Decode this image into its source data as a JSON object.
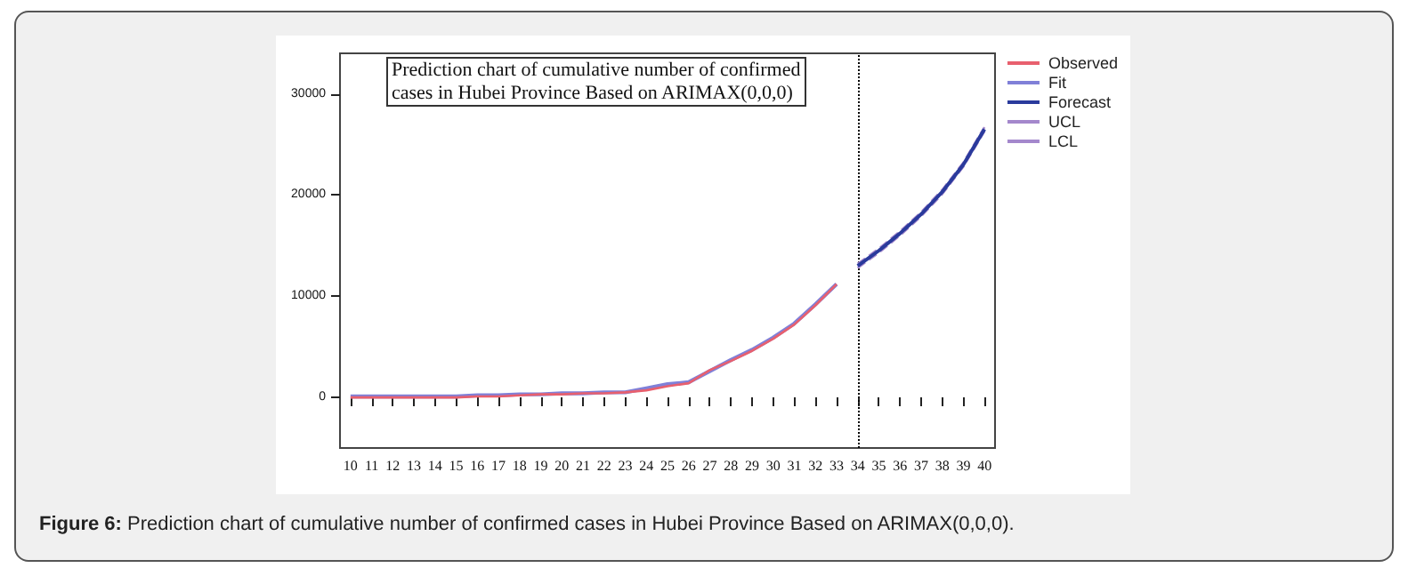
{
  "chart_data": {
    "type": "line",
    "title": "Prediction chart of cumulative number of confirmed\ncases in Hubei Province Based on ARIMAX(0,0,0)",
    "annotations": [
      "Figure 6: Prediction chart of cumulative number of confirmed cases in Hubei Province Based on ARIMAX(0,0,0)."
    ],
    "categories": [
      "10",
      "11",
      "12",
      "13",
      "14",
      "15",
      "16",
      "17",
      "18",
      "19",
      "20",
      "21",
      "22",
      "23",
      "24",
      "25",
      "26",
      "27",
      "28",
      "29",
      "30",
      "31",
      "32",
      "33",
      "34",
      "35",
      "36",
      "37",
      "38",
      "39",
      "40"
    ],
    "series": [
      {
        "name": "Observed",
        "color": "#e8606e",
        "line_style": "solid",
        "values": [
          0,
          0,
          0,
          0,
          0,
          0,
          100,
          100,
          200,
          300,
          300,
          400,
          400,
          500,
          700,
          1100,
          1400,
          2700,
          3600,
          4600,
          5800,
          7200,
          9100,
          11200,
          null,
          null,
          null,
          null,
          null,
          null,
          null
        ]
      },
      {
        "name": "Fit",
        "color": "#8080d8",
        "line_style": "solid",
        "values": [
          100,
          100,
          100,
          100,
          100,
          100,
          200,
          200,
          300,
          300,
          400,
          400,
          500,
          500,
          900,
          1300,
          1500,
          2600,
          3700,
          4700,
          5900,
          7300,
          9200,
          11200,
          null,
          null,
          null,
          null,
          null,
          null,
          null
        ]
      },
      {
        "name": "Forecast",
        "color": "#2a3a9c",
        "line_style": "solid",
        "values": [
          null,
          null,
          null,
          null,
          null,
          null,
          null,
          null,
          null,
          null,
          null,
          null,
          null,
          null,
          null,
          null,
          null,
          null,
          null,
          null,
          null,
          null,
          null,
          null,
          13000,
          14500,
          16200,
          18100,
          20300,
          23000,
          26500
        ]
      },
      {
        "name": "UCL",
        "color": "#a488cc",
        "line_style": "dashed",
        "values": [
          null,
          null,
          null,
          null,
          null,
          null,
          null,
          null,
          null,
          null,
          null,
          null,
          null,
          null,
          null,
          null,
          null,
          null,
          null,
          null,
          null,
          null,
          null,
          null,
          13200,
          14700,
          16400,
          18300,
          20500,
          23200,
          26700
        ]
      },
      {
        "name": "LCL",
        "color": "#a488cc",
        "line_style": "dashed",
        "values": [
          null,
          null,
          null,
          null,
          null,
          null,
          null,
          null,
          null,
          null,
          null,
          null,
          null,
          null,
          null,
          null,
          null,
          null,
          null,
          null,
          null,
          null,
          null,
          null,
          12800,
          14300,
          16000,
          17900,
          20100,
          22800,
          26300
        ]
      }
    ],
    "ylim": [
      -5000,
      34000
    ],
    "yticks": [
      0,
      10000,
      20000,
      30000
    ],
    "ref_lines": [
      {
        "axis": "x",
        "value": "34",
        "color": "#000000",
        "line_style": "dotted"
      }
    ],
    "grid": false,
    "legend": "top right",
    "marker": "none"
  }
}
